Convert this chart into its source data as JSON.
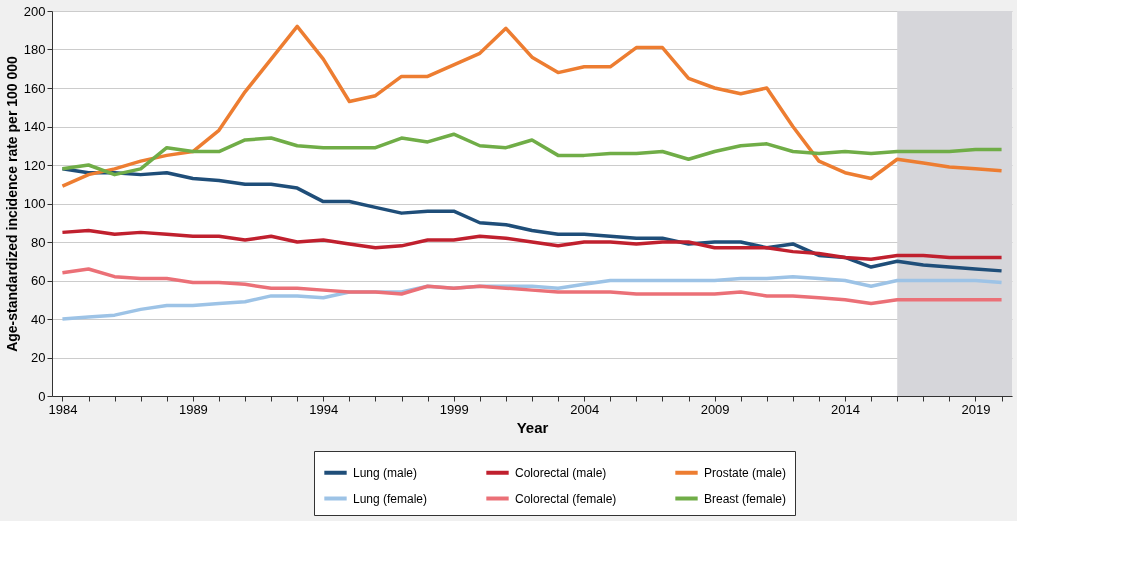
{
  "chart_data": {
    "type": "line",
    "xlabel": "Year",
    "ylabel": "Age-standardized incidence rate per 100 000",
    "x": [
      1984,
      1985,
      1986,
      1987,
      1988,
      1989,
      1990,
      1991,
      1992,
      1993,
      1994,
      1995,
      1996,
      1997,
      1998,
      1999,
      2000,
      2001,
      2002,
      2003,
      2004,
      2005,
      2006,
      2007,
      2008,
      2009,
      2010,
      2011,
      2012,
      2013,
      2014,
      2015,
      2016,
      2017,
      2018,
      2019,
      2020
    ],
    "xlim": [
      1983.6,
      2020.4
    ],
    "xticks": [
      {
        "value": 1984,
        "label": "1984"
      },
      {
        "value": 1985,
        "label": null
      },
      {
        "value": 1986,
        "label": null
      },
      {
        "value": 1987,
        "label": null
      },
      {
        "value": 1988,
        "label": null
      },
      {
        "value": 1989,
        "label": "1989"
      },
      {
        "value": 1990,
        "label": null
      },
      {
        "value": 1991,
        "label": null
      },
      {
        "value": 1992,
        "label": null
      },
      {
        "value": 1993,
        "label": null
      },
      {
        "value": 1994,
        "label": "1994"
      },
      {
        "value": 1995,
        "label": null
      },
      {
        "value": 1996,
        "label": null
      },
      {
        "value": 1997,
        "label": null
      },
      {
        "value": 1998,
        "label": null
      },
      {
        "value": 1999,
        "label": "1999"
      },
      {
        "value": 2000,
        "label": null
      },
      {
        "value": 2001,
        "label": null
      },
      {
        "value": 2002,
        "label": null
      },
      {
        "value": 2003,
        "label": null
      },
      {
        "value": 2004,
        "label": "2004"
      },
      {
        "value": 2005,
        "label": null
      },
      {
        "value": 2006,
        "label": null
      },
      {
        "value": 2007,
        "label": null
      },
      {
        "value": 2008,
        "label": null
      },
      {
        "value": 2009,
        "label": "2009"
      },
      {
        "value": 2010,
        "label": null
      },
      {
        "value": 2011,
        "label": null
      },
      {
        "value": 2012,
        "label": null
      },
      {
        "value": 2013,
        "label": null
      },
      {
        "value": 2014,
        "label": "2014"
      },
      {
        "value": 2015,
        "label": null
      },
      {
        "value": 2016,
        "label": null
      },
      {
        "value": 2017,
        "label": null
      },
      {
        "value": 2018,
        "label": null
      },
      {
        "value": 2019,
        "label": "2019"
      },
      {
        "value": 2020,
        "label": null
      }
    ],
    "ylim": [
      0,
      200
    ],
    "yticks": [
      0,
      20,
      40,
      60,
      80,
      100,
      120,
      140,
      160,
      180,
      200
    ],
    "grid": "y",
    "legend": "bottom",
    "marker": "none",
    "line_style": "solid",
    "bands": [
      {
        "axis": "x",
        "from": 2016,
        "to": 2020.4,
        "color": "#d6d6da"
      }
    ],
    "series": [
      {
        "name": "Lung (male)",
        "color": "#1f4e79",
        "values": [
          118,
          116,
          116,
          115,
          116,
          113,
          112,
          110,
          110,
          108,
          101,
          101,
          98,
          95,
          96,
          96,
          90,
          89,
          86,
          84,
          84,
          83,
          82,
          82,
          79,
          80,
          80,
          77,
          79,
          73,
          72,
          67,
          70,
          68,
          67,
          66,
          65
        ]
      },
      {
        "name": "Colorectal (male)",
        "color": "#c0202e",
        "values": [
          85,
          86,
          84,
          85,
          84,
          83,
          83,
          81,
          83,
          80,
          81,
          79,
          77,
          78,
          81,
          81,
          83,
          82,
          80,
          78,
          80,
          80,
          79,
          80,
          80,
          77,
          77,
          77,
          75,
          74,
          72,
          71,
          73,
          73,
          72,
          72,
          72
        ]
      },
      {
        "name": "Prostate (male)",
        "color": "#ed7d31",
        "values": [
          109,
          115,
          118,
          122,
          125,
          127,
          138,
          158,
          175,
          192,
          175,
          153,
          156,
          166,
          166,
          172,
          178,
          191,
          176,
          168,
          171,
          171,
          181,
          181,
          165,
          160,
          157,
          160,
          140,
          122,
          116,
          113,
          123,
          121,
          119,
          118,
          117
        ]
      },
      {
        "name": "Lung (female)",
        "color": "#9dc3e6",
        "values": [
          40,
          41,
          42,
          45,
          47,
          47,
          48,
          49,
          52,
          52,
          51,
          54,
          54,
          54,
          57,
          56,
          57,
          57,
          57,
          56,
          58,
          60,
          60,
          60,
          60,
          60,
          61,
          61,
          62,
          61,
          60,
          57,
          60,
          60,
          60,
          60,
          59
        ]
      },
      {
        "name": "Colorectal (female)",
        "color": "#eb7077",
        "values": [
          64,
          66,
          62,
          61,
          61,
          59,
          59,
          58,
          56,
          56,
          55,
          54,
          54,
          53,
          57,
          56,
          57,
          56,
          55,
          54,
          54,
          54,
          53,
          53,
          53,
          53,
          54,
          52,
          52,
          51,
          50,
          48,
          50,
          50,
          50,
          50,
          50
        ]
      },
      {
        "name": "Breast (female)",
        "color": "#70ad47",
        "values": [
          118,
          120,
          115,
          118,
          129,
          127,
          127,
          133,
          134,
          130,
          129,
          129,
          129,
          134,
          132,
          136,
          130,
          129,
          133,
          125,
          125,
          126,
          126,
          127,
          123,
          127,
          130,
          131,
          127,
          126,
          127,
          126,
          127,
          127,
          127,
          128,
          128
        ]
      }
    ]
  }
}
